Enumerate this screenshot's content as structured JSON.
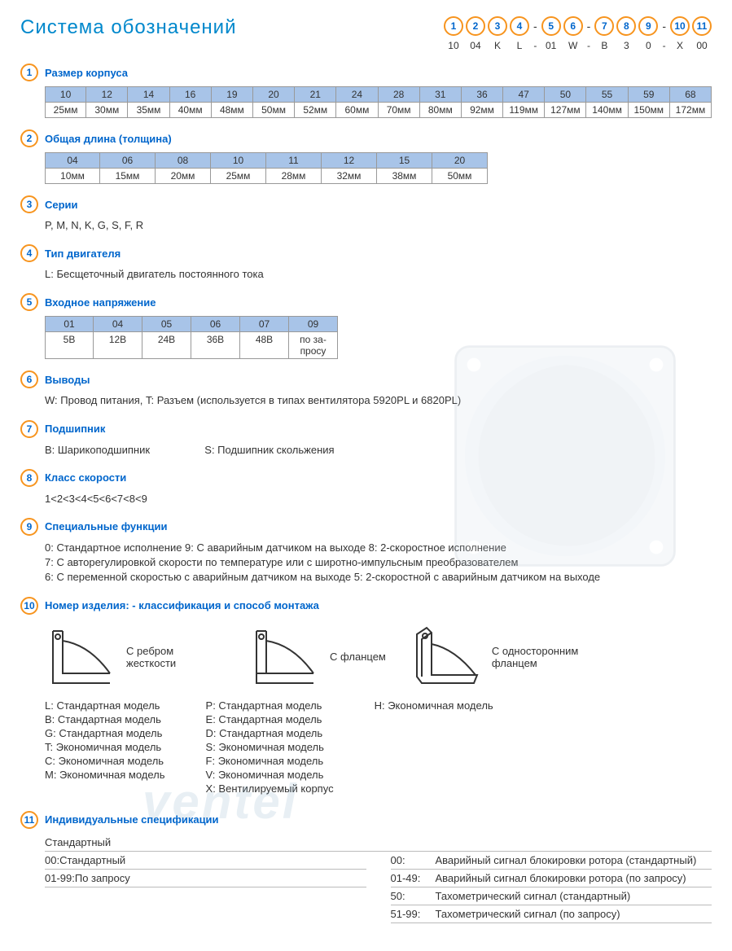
{
  "title": "Система обозначений",
  "code_strip": [
    {
      "num": "1",
      "val": "10"
    },
    {
      "num": "2",
      "val": "04"
    },
    {
      "num": "3",
      "val": "K"
    },
    {
      "num": "4",
      "val": "L"
    },
    {
      "dash": "-"
    },
    {
      "num": "5",
      "val": "01"
    },
    {
      "num": "6",
      "val": "W"
    },
    {
      "dash": "-"
    },
    {
      "num": "7",
      "val": "B"
    },
    {
      "num": "8",
      "val": "3"
    },
    {
      "num": "9",
      "val": "0"
    },
    {
      "dash": "-"
    },
    {
      "num": "10",
      "val": "X"
    },
    {
      "num": "11",
      "val": "00"
    }
  ],
  "colors": {
    "accent_orange": "#f7941e",
    "accent_blue": "#0066cc",
    "title_blue": "#0088cc",
    "table_header_bg": "#a8c4e8",
    "border": "#999"
  },
  "sec1": {
    "num": "1",
    "title": "Размер корпуса",
    "cols": [
      {
        "code": "10",
        "val": "25мм"
      },
      {
        "code": "12",
        "val": "30мм"
      },
      {
        "code": "14",
        "val": "35мм"
      },
      {
        "code": "16",
        "val": "40мм"
      },
      {
        "code": "19",
        "val": "48мм"
      },
      {
        "code": "20",
        "val": "50мм"
      },
      {
        "code": "21",
        "val": "52мм"
      },
      {
        "code": "24",
        "val": "60мм"
      },
      {
        "code": "28",
        "val": "70мм"
      },
      {
        "code": "31",
        "val": "80мм"
      },
      {
        "code": "36",
        "val": "92мм"
      },
      {
        "code": "47",
        "val": "119мм"
      },
      {
        "code": "50",
        "val": "127мм"
      },
      {
        "code": "55",
        "val": "140мм"
      },
      {
        "code": "59",
        "val": "150мм"
      },
      {
        "code": "68",
        "val": "172мм"
      }
    ]
  },
  "sec2": {
    "num": "2",
    "title": "Общая длина (толщина)",
    "cols": [
      {
        "code": "04",
        "val": "10мм"
      },
      {
        "code": "06",
        "val": "15мм"
      },
      {
        "code": "08",
        "val": "20мм"
      },
      {
        "code": "10",
        "val": "25мм"
      },
      {
        "code": "11",
        "val": "28мм"
      },
      {
        "code": "12",
        "val": "32мм"
      },
      {
        "code": "15",
        "val": "38мм"
      },
      {
        "code": "20",
        "val": "50мм"
      }
    ]
  },
  "sec3": {
    "num": "3",
    "title": "Серии",
    "body": "P, M, N, K, G, S, F, R"
  },
  "sec4": {
    "num": "4",
    "title": "Тип двигателя",
    "body": "L: Бесщеточный двигатель постоянного тока"
  },
  "sec5": {
    "num": "5",
    "title": "Входное напряжение",
    "cols": [
      {
        "code": "01",
        "val": "5В"
      },
      {
        "code": "04",
        "val": "12В"
      },
      {
        "code": "05",
        "val": "24В"
      },
      {
        "code": "06",
        "val": "36В"
      },
      {
        "code": "07",
        "val": "48В"
      },
      {
        "code": "09",
        "val": "по за-\nпросу"
      }
    ]
  },
  "sec6": {
    "num": "6",
    "title": "Выводы",
    "body": "W: Провод питания, T: Разъем (используется в типах вентилятора  5920PL и 6820PL)"
  },
  "sec7": {
    "num": "7",
    "title": "Подшипник",
    "b_label": "B: Шарикоподшипник",
    "s_label": "S: Подшипник скольжения"
  },
  "sec8": {
    "num": "8",
    "title": "Класс скорости",
    "body": "1<2<3<4<5<6<7<8<9"
  },
  "sec9": {
    "num": "9",
    "title": "Специальные функции",
    "line1": "0: Стандартное исполнение   9: С аварийным датчиком на выходе   8: 2-скоростное исполнение",
    "line2": "7: С авторегулировкой скорости по температуре или с широтно-импульсным преобразователем",
    "line3": "6: С переменной скоростью с аварийным датчиком на выходе   5: 2-скоростной с аварийным датчиком на выходе"
  },
  "sec10": {
    "num": "10",
    "title": "Номер изделия: - классификация  и способ монтажа",
    "mounts": [
      {
        "label": "С ребром жесткости"
      },
      {
        "label": "С фланцем"
      },
      {
        "label": "С односторонним фланцем"
      }
    ],
    "col1": [
      "L:  Стандартная модель",
      "B:  Стандартная модель",
      "G:  Стандартная модель",
      "T:  Экономичная модель",
      "C:  Экономичная модель",
      "M:  Экономичная модель"
    ],
    "col2": [
      "P:  Стандартная модель",
      "E:  Стандартная модель",
      "D:  Стандартная модель",
      "S:  Экономичная модель",
      "F:  Экономичная модель",
      "V:  Экономичная модель",
      "X:  Вентилируемый корпус"
    ],
    "col3": [
      "H:  Экономичная модель"
    ]
  },
  "sec11": {
    "num": "11",
    "title": "Индивидуальные спецификации",
    "left_header": "Стандартный",
    "left": [
      {
        "code": "00:",
        "txt": "Стандартный"
      },
      {
        "code": "01-99:",
        "txt": "По запросу"
      }
    ],
    "right": [
      {
        "code": "00:",
        "txt": "Аварийный сигнал блокировки ротора (стандартный)"
      },
      {
        "code": "01-49:",
        "txt": "Аварийный сигнал блокировки ротора (по запросу)"
      },
      {
        "code": "50:",
        "txt": "Тахометрический сигнал (стандартный)"
      },
      {
        "code": "51-99:",
        "txt": "Тахометрический сигнал (по запросу)"
      }
    ]
  },
  "watermark": "ventel"
}
